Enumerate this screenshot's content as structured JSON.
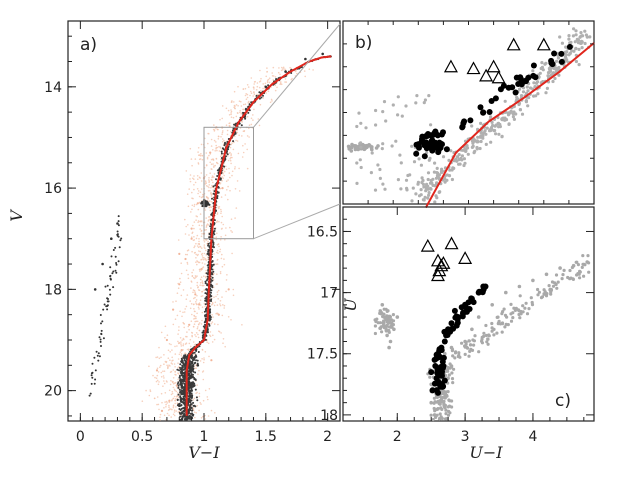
{
  "chart_data": [
    {
      "panel": "a",
      "type": "scatter",
      "label": "a)",
      "xlabel": "V−I",
      "ylabel": "V",
      "xlim": [
        -0.1,
        2.1
      ],
      "ylim": [
        20.6,
        12.7
      ],
      "y_inverted": true,
      "xticks": [
        "0",
        "0.5",
        "1",
        "1.5",
        "2"
      ],
      "xtick_values": [
        0,
        0.5,
        1,
        1.5,
        2
      ],
      "yticks": [
        "14",
        "16",
        "18",
        "20"
      ],
      "ytick_values": [
        14,
        16,
        18,
        20
      ],
      "series": [
        {
          "role": "field stars",
          "color": "#f2b59a",
          "x": [
            0.62,
            0.7,
            0.75,
            0.8,
            0.85,
            0.9,
            0.95,
            1.0,
            1.05,
            1.1,
            0.78,
            0.82,
            0.88,
            0.93,
            0.98,
            1.03,
            1.08,
            1.15,
            0.72,
            0.86,
            0.94,
            1.02,
            1.12,
            1.2,
            0.66,
            0.9,
            1.0,
            0.8,
            0.96,
            1.06
          ],
          "y": [
            19.6,
            19.0,
            18.4,
            17.9,
            17.4,
            16.8,
            16.3,
            15.8,
            15.3,
            14.8,
            19.9,
            19.2,
            18.7,
            18.1,
            17.6,
            17.1,
            16.5,
            16.0,
            20.2,
            20.0,
            19.5,
            19.0,
            18.5,
            18.0,
            20.4,
            17.0,
            16.9,
            17.3,
            18.3,
            19.4
          ]
        },
        {
          "role": "cluster members",
          "color": "#333333",
          "x": [
            0.84,
            0.88,
            0.92,
            0.95,
            1.0,
            1.02,
            1.05,
            1.08,
            1.12,
            1.18,
            1.26,
            1.36,
            1.5,
            1.66,
            1.82,
            1.96,
            2.02,
            0.98,
            1.0,
            1.03,
            0.9,
            0.86,
            0.82,
            0.8,
            0.12,
            0.18,
            0.25,
            0.3
          ],
          "y": [
            20.5,
            20.2,
            19.9,
            19.5,
            19.0,
            18.0,
            17.0,
            16.3,
            15.7,
            15.2,
            14.8,
            14.4,
            14.0,
            13.7,
            13.45,
            13.35,
            13.4,
            16.3,
            16.35,
            16.32,
            19.3,
            19.6,
            19.9,
            20.3,
            18.0,
            17.5,
            17.0,
            16.7
          ]
        }
      ],
      "fiducial_line": {
        "color": "#e0261d",
        "x": [
          0.86,
          0.86,
          0.88,
          0.93,
          1.0,
          1.03,
          1.04,
          1.06,
          1.1,
          1.18,
          1.28,
          1.4,
          1.55,
          1.7,
          1.85,
          1.95,
          2.03
        ],
        "y": [
          20.5,
          19.6,
          19.3,
          19.15,
          19.0,
          18.6,
          18.0,
          17.0,
          16.0,
          15.2,
          14.7,
          14.3,
          13.95,
          13.7,
          13.5,
          13.42,
          13.4
        ]
      },
      "inset_box": {
        "x": [
          1.0,
          1.4
        ],
        "y": [
          14.8,
          17.0
        ]
      }
    },
    {
      "panel": "b",
      "type": "scatter",
      "label": "b)",
      "series": [
        {
          "role": "field",
          "color": "#a9a9a9",
          "marker": "circle"
        },
        {
          "role": "members",
          "color": "#000000",
          "marker": "filled circle"
        },
        {
          "role": "outliers",
          "color": "#000000",
          "marker": "open triangle"
        }
      ],
      "fiducial_line": {
        "color": "#e0261d"
      }
    },
    {
      "panel": "c",
      "type": "scatter",
      "label": "c)",
      "xlabel": "U−I",
      "ylabel": "U",
      "xlim": [
        1.2,
        4.9
      ],
      "ylim": [
        18.05,
        16.3
      ],
      "y_inverted": true,
      "xticks": [
        "2",
        "3",
        "4"
      ],
      "xtick_values": [
        2,
        3,
        4
      ],
      "yticks": [
        "16.5",
        "17",
        "17.5",
        "18"
      ],
      "ytick_values": [
        16.5,
        17,
        17.5,
        18
      ],
      "series": [
        {
          "role": "field",
          "color": "#a9a9a9",
          "marker": "circle",
          "x": [
            1.75,
            1.8,
            1.85,
            1.9,
            1.95,
            2.0,
            1.78,
            1.88,
            2.5,
            2.6,
            2.7,
            2.8,
            3.0,
            3.2,
            3.4,
            3.6,
            3.8,
            4.0,
            4.2,
            4.4,
            4.6,
            4.8,
            2.55,
            2.65,
            2.75,
            2.6,
            2.7,
            2.5,
            2.8,
            3.1
          ],
          "y": [
            17.15,
            17.25,
            17.35,
            17.4,
            17.3,
            17.2,
            17.1,
            17.45,
            17.9,
            17.95,
            17.85,
            17.6,
            17.4,
            17.2,
            17.1,
            17.0,
            16.95,
            16.9,
            16.85,
            16.8,
            16.78,
            16.75,
            18.0,
            17.8,
            17.7,
            17.65,
            17.5,
            17.75,
            17.45,
            17.3
          ]
        },
        {
          "role": "members",
          "color": "#000000",
          "marker": "filled circle",
          "x": [
            2.5,
            2.55,
            2.6,
            2.65,
            2.7,
            2.58,
            2.62,
            2.68,
            2.52,
            2.75,
            2.8,
            2.9,
            3.0,
            3.1,
            3.2,
            3.3,
            2.85,
            2.95,
            3.05,
            2.72,
            2.66,
            2.56,
            2.6,
            2.7
          ],
          "y": [
            17.65,
            17.55,
            17.5,
            17.45,
            17.4,
            17.7,
            17.75,
            17.6,
            17.8,
            17.3,
            17.25,
            17.2,
            17.1,
            17.05,
            17.0,
            16.95,
            17.15,
            17.12,
            17.08,
            17.35,
            17.68,
            17.6,
            17.82,
            17.72
          ]
        },
        {
          "role": "outliers",
          "color": "#000000",
          "marker": "open triangle",
          "x": [
            2.45,
            2.8,
            3.0,
            2.6,
            2.65,
            2.62,
            2.68,
            2.6
          ],
          "y": [
            16.62,
            16.6,
            16.72,
            16.74,
            16.78,
            16.82,
            16.76,
            16.86
          ]
        }
      ]
    }
  ]
}
